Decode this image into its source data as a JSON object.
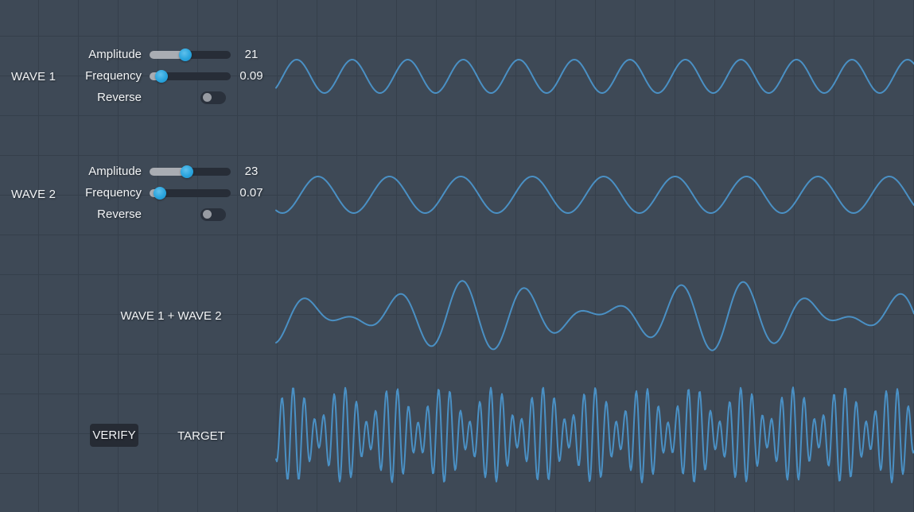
{
  "colors": {
    "background": "#3e4956",
    "grid_line": "#353f4b",
    "wave_stroke": "#4a90c4",
    "slider_track": "#272d37",
    "slider_fill": "#a9adb3",
    "slider_thumb": "#2aa4dd",
    "toggle_track": "#2a313c",
    "toggle_knob": "#979ba2",
    "button_bg": "#262b34",
    "text": "#f1f3f5"
  },
  "panel": {
    "wave1": {
      "title": "WAVE 1",
      "amplitude": {
        "label": "Amplitude",
        "value": "21",
        "slider_pct": 44
      },
      "frequency": {
        "label": "Frequency",
        "value": "0.09",
        "slider_pct": 14.5
      },
      "reverse": {
        "label": "Reverse",
        "on": false
      }
    },
    "wave2": {
      "title": "WAVE 2",
      "amplitude": {
        "label": "Amplitude",
        "value": "23",
        "slider_pct": 46
      },
      "frequency": {
        "label": "Frequency",
        "value": "0.07",
        "slider_pct": 12.5
      },
      "reverse": {
        "label": "Reverse",
        "on": false
      }
    },
    "combined_label": "WAVE 1 + WAVE 2",
    "verify_label": "VERIFY",
    "target_label": "TARGET"
  },
  "chart_data": {
    "type": "line",
    "x_range": [
      347,
      1149
    ],
    "waves": [
      {
        "name": "wave1",
        "midline_y": 96,
        "amplitude": 21,
        "frequency": 0.09,
        "phase_zero_x": 355.5,
        "reverse": false
      },
      {
        "name": "wave2",
        "midline_y": 245,
        "amplitude": 23,
        "frequency": 0.07,
        "phase_zero_x": 377.4,
        "reverse": false
      },
      {
        "name": "wave1-plus-wave2",
        "midline_y": 397,
        "sum_of": [
          "wave1",
          "wave2"
        ]
      },
      {
        "name": "target",
        "midline_y": 547,
        "peak_x": 368.5,
        "components": [
          {
            "amplitude": 38,
            "frequency": 0.48
          },
          {
            "amplitude": 22,
            "frequency": 0.38
          }
        ]
      }
    ]
  }
}
